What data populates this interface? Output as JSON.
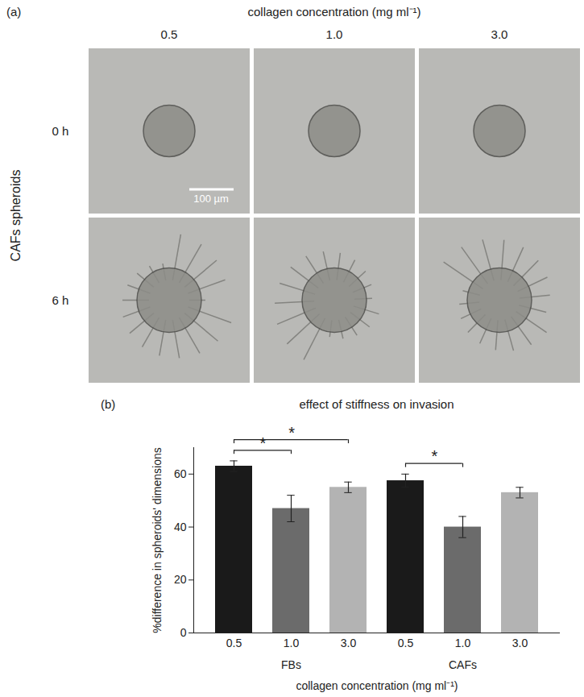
{
  "panel_a": {
    "panel_label": "(a)",
    "title": "collagen concentration (mg ml⁻¹)",
    "columns": [
      "0.5",
      "1.0",
      "3.0"
    ],
    "rows": [
      "0 h",
      "6 h"
    ],
    "row_group": "CAFs spheroids",
    "scale_bar": "100 µm"
  },
  "chart_data": {
    "type": "bar",
    "panel_label": "(b)",
    "title": "effect of stiffness on invasion",
    "x_label": "collagen concentration (mg ml⁻¹)",
    "y_label": "%difference in spheroids' dimensions",
    "categories": [
      "0.5",
      "1.0",
      "3.0",
      "0.5",
      "1.0",
      "3.0"
    ],
    "group": [
      "FBs",
      "FBs",
      "FBs",
      "CAFs",
      "CAFs",
      "CAFs"
    ],
    "values": [
      63,
      47,
      55,
      57.5,
      40,
      53
    ],
    "errors": [
      2,
      5,
      2,
      2.5,
      4,
      2
    ],
    "colors": [
      "#1a1a1a",
      "#6b6b6b",
      "#b3b3b3",
      "#1a1a1a",
      "#6b6b6b",
      "#b3b3b3"
    ],
    "ylim": [
      0,
      70
    ],
    "yticks": [
      0,
      20,
      40,
      60
    ],
    "grid": false,
    "annotations": [
      {
        "from": 0,
        "to": 1,
        "label": "*"
      },
      {
        "from": 0,
        "to": 2,
        "label": "*"
      },
      {
        "from": 3,
        "to": 4,
        "label": "*"
      }
    ]
  }
}
